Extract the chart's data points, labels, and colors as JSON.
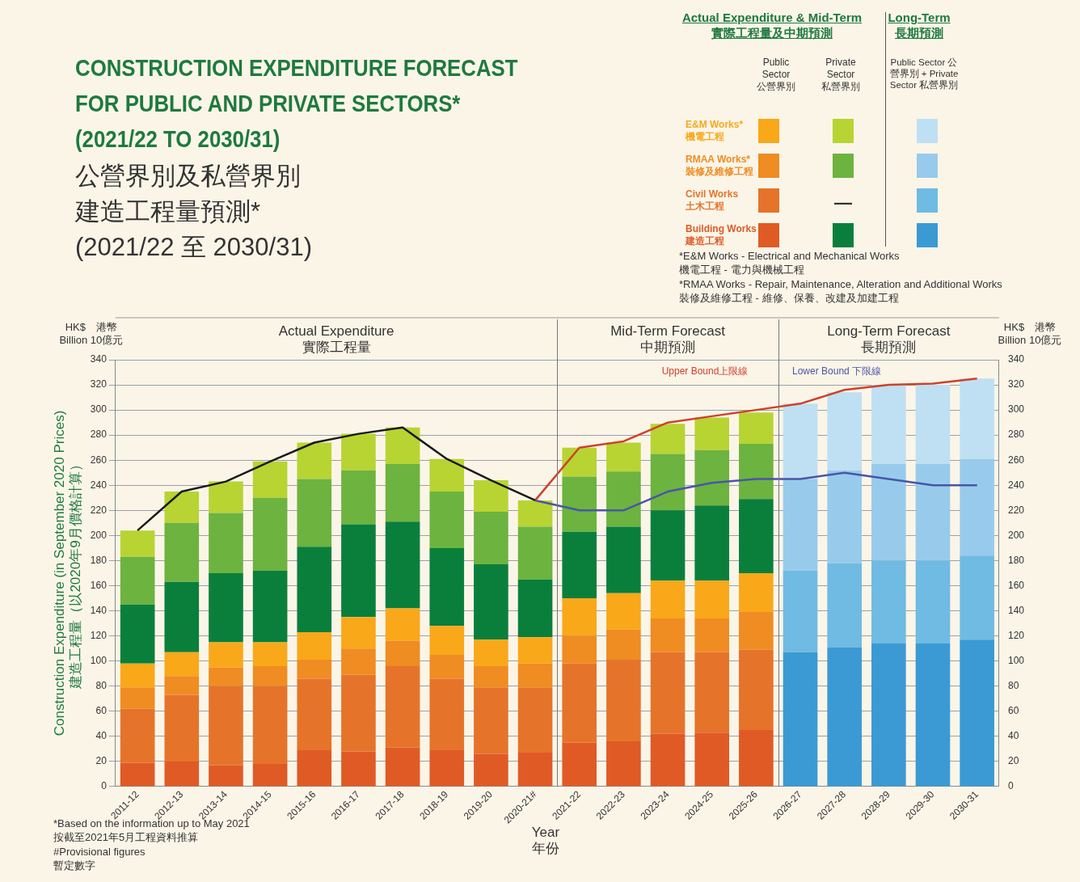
{
  "chart_data": {
    "type": "bar",
    "stacked": true,
    "title": "CONSTRUCTION EXPENDITURE FORECAST\nFOR PUBLIC AND PRIVATE SECTORS*\n(2021/22 TO 2030/31)",
    "subtitle": "公營界別及私營界別建造工程量預測*\n(2021/22 至 2030/31)",
    "xlabel": "Year\n年份",
    "ylabel": "Construction Expenditure (in September 2020 Prices)\n建造工程量（以2020年9月價格計算）",
    "categories": [
      "2011-12",
      "2012-13",
      "2013-14",
      "2014-15",
      "2015-16",
      "2016-17",
      "2017-18",
      "2018-19",
      "2019-20",
      "2020-21#",
      "2021-22",
      "2022-23",
      "2023-24",
      "2024-25",
      "2025-26",
      "2026-27",
      "2027-28",
      "2028-29",
      "2029-30",
      "2030-31"
    ],
    "series": [
      {
        "name": "Building Works\n建造工程",
        "color": "#e05a26",
        "values": [
          19,
          20,
          17,
          18,
          29,
          28,
          31,
          29,
          26,
          27,
          35,
          36,
          42,
          43,
          45,
          null,
          null,
          null,
          null,
          null
        ]
      },
      {
        "name": "Civil Works\n土木工程",
        "color": "#e5742a",
        "values": [
          43,
          53,
          63,
          62,
          57,
          61,
          65,
          57,
          53,
          52,
          63,
          65,
          65,
          64,
          64,
          null,
          null,
          null,
          null,
          null
        ]
      },
      {
        "name": "RMAA Works*\n裝修及維修工程",
        "color": "#ef8c22",
        "values": [
          17,
          15,
          15,
          16,
          15,
          21,
          20,
          19,
          17,
          19,
          22,
          24,
          27,
          27,
          30,
          null,
          null,
          null,
          null,
          null
        ]
      },
      {
        "name": "E&M Works*\n機電工程",
        "color": "#f9a81a",
        "values": [
          19,
          19,
          20,
          19,
          22,
          25,
          26,
          23,
          21,
          21,
          30,
          29,
          30,
          30,
          31,
          null,
          null,
          null,
          null,
          null
        ]
      },
      {
        "color": "#0a7f3c",
        "values": [
          47,
          56,
          55,
          57,
          68,
          74,
          69,
          62,
          60,
          46,
          53,
          53,
          56,
          60,
          59,
          null,
          null,
          null,
          null,
          null
        ]
      },
      {
        "color": "#6db33f",
        "values": [
          38,
          47,
          48,
          58,
          54,
          43,
          46,
          45,
          42,
          42,
          44,
          44,
          45,
          44,
          44,
          null,
          null,
          null,
          null,
          null
        ]
      },
      {
        "color": "#b8d433",
        "values": [
          21,
          25,
          25,
          29,
          29,
          29,
          29,
          26,
          25,
          21,
          23,
          23,
          24,
          26,
          25,
          null,
          null,
          null,
          null,
          null
        ]
      },
      {
        "color": "#3b9ad3",
        "values": [
          null,
          null,
          null,
          null,
          null,
          null,
          null,
          null,
          null,
          null,
          null,
          null,
          null,
          null,
          null,
          107,
          111,
          114,
          114,
          117
        ]
      },
      {
        "color": "#6fbbe3",
        "values": [
          null,
          null,
          null,
          null,
          null,
          null,
          null,
          null,
          null,
          null,
          null,
          null,
          null,
          null,
          null,
          65,
          67,
          66,
          66,
          67
        ]
      },
      {
        "color": "#98cbeb",
        "values": [
          null,
          null,
          null,
          null,
          null,
          null,
          null,
          null,
          null,
          null,
          null,
          null,
          null,
          null,
          null,
          73,
          74,
          77,
          77,
          77
        ]
      },
      {
        "color": "#bfe0f3",
        "values": [
          null,
          null,
          null,
          null,
          null,
          null,
          null,
          null,
          null,
          null,
          null,
          null,
          null,
          null,
          null,
          60,
          62,
          63,
          63,
          64
        ]
      },
      {
        "type": "line",
        "color": "#1a1a1a",
        "values": [
          204,
          235,
          243,
          259,
          274,
          281,
          286,
          261,
          244,
          228,
          null,
          null,
          null,
          null,
          null,
          null,
          null,
          null,
          null,
          null
        ]
      },
      {
        "type": "line",
        "name": "Upper Bound上限線",
        "color": "#d0402a",
        "values": [
          null,
          null,
          null,
          null,
          null,
          null,
          null,
          null,
          null,
          228,
          270,
          275,
          290,
          295,
          300,
          305,
          316,
          320,
          321,
          325
        ]
      },
      {
        "type": "line",
        "name": "Lower Bound 下限線",
        "color": "#4a55a8",
        "values": [
          null,
          null,
          null,
          null,
          null,
          null,
          null,
          null,
          null,
          228,
          220,
          220,
          235,
          242,
          245,
          245,
          250,
          245,
          240,
          240
        ]
      }
    ],
    "ylim": [
      0,
      340
    ],
    "yticks": [
      0,
      20,
      40,
      60,
      80,
      100,
      120,
      140,
      160,
      180,
      200,
      220,
      240,
      260,
      280,
      300,
      320,
      340
    ],
    "y2lim": [
      0,
      340
    ],
    "y2ticks": [
      0,
      20,
      40,
      60,
      80,
      100,
      120,
      140,
      160,
      180,
      200,
      220,
      240,
      260,
      280,
      300,
      320,
      340
    ],
    "grid": "y",
    "legend": "top right",
    "marker": "none",
    "line_style": "solid",
    "annotations": [
      "HK$　港幣\nBillion 10億元",
      "HK$　港幣\nBillion 10億元",
      "Actual Expenditure & Mid-Term\n實際工程量及中期預測",
      "Long-Term\n長期預測",
      "Public\nSector\n公營界別",
      "Private\nSector\n私營界別",
      "Public Sector 公營界別 + Private Sector 私營界別",
      "—",
      "*E&M Works  -  Electrical and Mechanical Works\n機電工程  -  電力與機械工程",
      "*RMAA Works  -  Repair, Maintenance, Alteration and Additional Works\n裝修及維修工程  -  維修、保養、改建及加建工程",
      "*Based on the information up to May 2021\n按截至2021年5月工程資料推算",
      "#Provisional figures\n暫定數字",
      "Actual Expenditure\n實際工程量",
      "Mid-Term Forecast\n中期預測",
      "Long-Term Forecast\n長期預測"
    ]
  }
}
